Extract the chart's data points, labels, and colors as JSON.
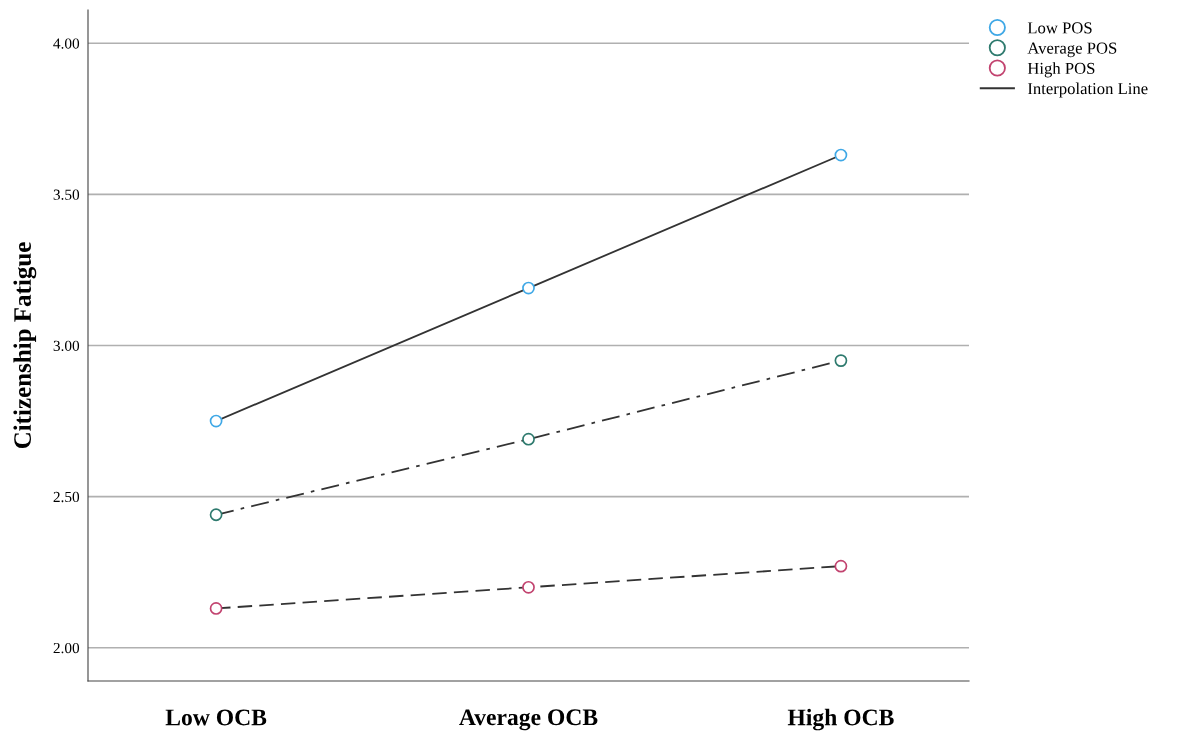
{
  "chart_data": {
    "type": "line",
    "ylabel": "Citizenship Fatigue",
    "categories": [
      "Low OCB",
      "Average OCB",
      "High OCB"
    ],
    "series": [
      {
        "name": "Low POS",
        "color": "#3fa8e6",
        "line_style": "solid",
        "values": [
          2.75,
          3.19,
          3.63
        ]
      },
      {
        "name": "Average POS",
        "color": "#2e7a6e",
        "line_style": "dashdot",
        "values": [
          2.44,
          2.69,
          2.95
        ]
      },
      {
        "name": "High POS",
        "color": "#c2436f",
        "line_style": "dashed",
        "values": [
          2.13,
          2.2,
          2.27
        ]
      },
      {
        "name": "Interpolation Line",
        "type": "line",
        "marker": "none",
        "color": "#333333",
        "values": [
          null,
          null,
          null
        ]
      }
    ],
    "marker": "circle",
    "ylim": [
      1.89,
      4.11
    ],
    "yticks": [
      {
        "value": 2.0,
        "label": "2.00"
      },
      {
        "value": 2.5,
        "label": "2.50"
      },
      {
        "value": 3.0,
        "label": "3.00"
      },
      {
        "value": 3.5,
        "label": "3.50"
      },
      {
        "value": 4.0,
        "label": "4.00"
      }
    ],
    "grid": "y",
    "legend": "top right"
  }
}
